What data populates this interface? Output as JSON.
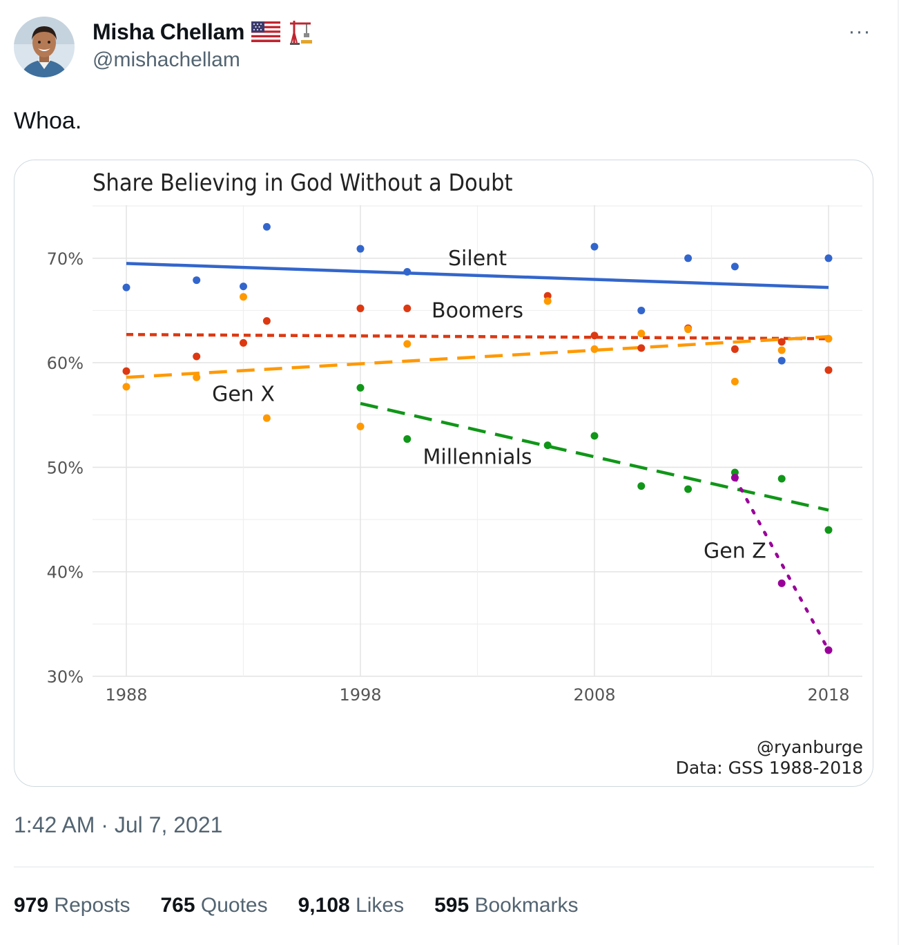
{
  "author": {
    "display_name": "Misha Chellam",
    "handle": "@mishachellam",
    "badges": [
      "us-flag-icon",
      "construction-crane-icon"
    ]
  },
  "tweet": {
    "text": "Whoa.",
    "timestamp": "1:42 AM · Jul 7, 2021"
  },
  "menu": {
    "more_label": "···"
  },
  "stats": [
    {
      "count": "979",
      "label": "Reposts"
    },
    {
      "count": "765",
      "label": "Quotes"
    },
    {
      "count": "9,108",
      "label": "Likes"
    },
    {
      "count": "595",
      "label": "Bookmarks"
    }
  ],
  "colors": {
    "silent": "#3366cc",
    "boomers": "#dc3912",
    "genx": "#ff9900",
    "millennials": "#109618",
    "genz": "#990099"
  },
  "chart_data": {
    "type": "scatter",
    "title": "Share Believing in God Without a Doubt",
    "xlabel": "",
    "ylabel": "",
    "xlim": [
      1987,
      2019.5
    ],
    "ylim": [
      30,
      75
    ],
    "x_ticks": [
      1988,
      1998,
      2008,
      2018
    ],
    "x_tick_labels": [
      "1988",
      "1998",
      "2008",
      "2018"
    ],
    "y_ticks": [
      30,
      40,
      50,
      60,
      70
    ],
    "y_tick_labels": [
      "30%",
      "40%",
      "50%",
      "60%",
      "70%"
    ],
    "grid": true,
    "annotations": [
      "@ryanburge",
      "Data: GSS 1988-2018"
    ],
    "series": [
      {
        "name": "Silent",
        "key": "silent",
        "dash": "solid",
        "label_pos": [
          2003,
          70
        ],
        "x": [
          1988,
          1991,
          1993,
          1994,
          1998,
          2000,
          2008,
          2010,
          2012,
          2014,
          2016,
          2018
        ],
        "y": [
          67.2,
          67.9,
          67.3,
          73.0,
          70.9,
          68.7,
          71.1,
          65.0,
          70.0,
          69.2,
          60.2,
          70.0
        ],
        "trend": [
          [
            1988,
            69.5
          ],
          [
            2018,
            67.2
          ]
        ]
      },
      {
        "name": "Boomers",
        "key": "boomers",
        "dash": "dotted",
        "label_pos": [
          2003,
          65
        ],
        "x": [
          1988,
          1991,
          1993,
          1994,
          1998,
          2000,
          2006,
          2008,
          2010,
          2012,
          2014,
          2016,
          2018
        ],
        "y": [
          59.2,
          60.6,
          61.9,
          64.0,
          65.2,
          65.2,
          66.4,
          62.6,
          61.4,
          63.3,
          61.3,
          62.0,
          59.3
        ],
        "trend": [
          [
            1988,
            62.7
          ],
          [
            2018,
            62.3
          ]
        ]
      },
      {
        "name": "Gen X",
        "key": "genx",
        "dash": "dashed",
        "label_pos": [
          1993,
          57
        ],
        "x": [
          1988,
          1991,
          1993,
          1994,
          1998,
          2000,
          2006,
          2008,
          2010,
          2012,
          2014,
          2016,
          2018
        ],
        "y": [
          57.7,
          58.6,
          66.3,
          54.7,
          53.9,
          61.8,
          65.9,
          61.3,
          62.8,
          63.2,
          58.2,
          61.2,
          62.3
        ],
        "trend": [
          [
            1988,
            58.6
          ],
          [
            2018,
            62.5
          ]
        ]
      },
      {
        "name": "Millennials",
        "key": "millennials",
        "dash": "dashed",
        "label_pos": [
          2003,
          51
        ],
        "x": [
          1998,
          2000,
          2006,
          2008,
          2010,
          2012,
          2014,
          2016,
          2018
        ],
        "y": [
          57.6,
          52.7,
          52.1,
          53.0,
          48.2,
          47.9,
          49.5,
          48.9,
          44.0
        ],
        "trend": [
          [
            1998,
            56.1
          ],
          [
            2018,
            45.9
          ]
        ]
      },
      {
        "name": "Gen Z",
        "key": "genz",
        "dash": "dotted2",
        "label_pos": [
          2014,
          42
        ],
        "x": [
          2014,
          2016,
          2018
        ],
        "y": [
          49.0,
          38.9,
          32.5
        ],
        "trend": [
          [
            2014,
            49.0
          ],
          [
            2018,
            32.5
          ]
        ]
      }
    ]
  }
}
